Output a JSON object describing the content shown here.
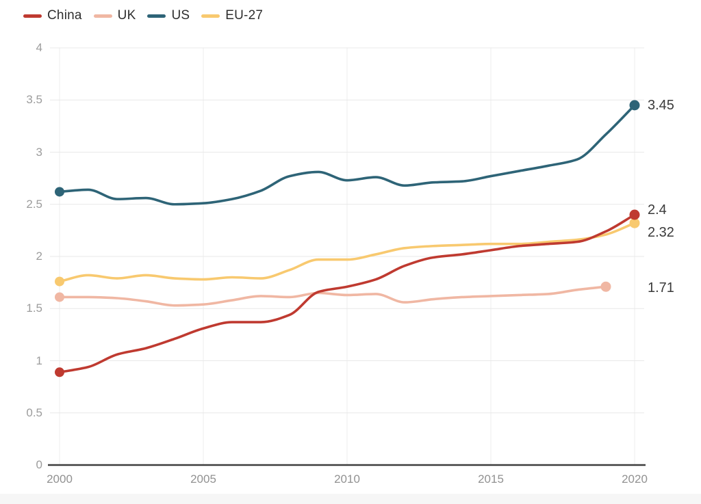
{
  "style": {
    "background": "#ffffff",
    "grid_color": "#e8e8e8",
    "vertical_grid_color": "#ededed",
    "axis_line_color": "#3d3d3d",
    "tick_text_color": "#9c9c9c",
    "end_label_color": "#3a3a3a",
    "legend_text_color": "#2e2e2e",
    "bottom_strip_color": "#f6f6f6"
  },
  "legend": {
    "items": [
      {
        "label": "China",
        "color": "#bf3a30"
      },
      {
        "label": "UK",
        "color": "#f0b7a3"
      },
      {
        "label": "US",
        "color": "#2e6477"
      },
      {
        "label": "EU-27",
        "color": "#f8c96f"
      }
    ]
  },
  "chart_data": {
    "type": "line",
    "title": "",
    "xlabel": "",
    "ylabel": "",
    "x": [
      2000,
      2001,
      2002,
      2003,
      2004,
      2005,
      2006,
      2007,
      2008,
      2009,
      2010,
      2011,
      2012,
      2013,
      2014,
      2015,
      2016,
      2017,
      2018,
      2019,
      2020
    ],
    "x_ticks": [
      2000,
      2005,
      2010,
      2015,
      2020
    ],
    "y_ticks": [
      0,
      0.5,
      1,
      1.5,
      2,
      2.5,
      3,
      3.5,
      4
    ],
    "ylim": [
      0,
      4
    ],
    "xlim": [
      2000,
      2020
    ],
    "grid": true,
    "legend_position": "top-left",
    "marker_ends": true,
    "z_order": [
      "US",
      "UK",
      "EU-27",
      "China"
    ],
    "series": [
      {
        "name": "China",
        "color": "#bf3a30",
        "end_label": "2.4",
        "end_label_dy": -7,
        "values": [
          0.89,
          0.94,
          1.06,
          1.12,
          1.21,
          1.31,
          1.37,
          1.37,
          1.44,
          1.66,
          1.71,
          1.78,
          1.91,
          1.99,
          2.02,
          2.06,
          2.1,
          2.12,
          2.14,
          2.24,
          2.4
        ]
      },
      {
        "name": "UK",
        "color": "#f0b7a3",
        "end_label": "1.71",
        "end_label_dy": 2,
        "values": [
          1.61,
          1.61,
          1.6,
          1.57,
          1.53,
          1.54,
          1.58,
          1.62,
          1.61,
          1.65,
          1.63,
          1.64,
          1.56,
          1.59,
          1.61,
          1.62,
          1.63,
          1.64,
          1.68,
          1.71,
          null
        ]
      },
      {
        "name": "US",
        "color": "#2e6477",
        "end_label": "3.45",
        "end_label_dy": 0,
        "values": [
          2.62,
          2.64,
          2.55,
          2.56,
          2.5,
          2.51,
          2.55,
          2.63,
          2.77,
          2.81,
          2.73,
          2.76,
          2.68,
          2.71,
          2.72,
          2.77,
          2.82,
          2.87,
          2.93,
          3.17,
          3.45
        ]
      },
      {
        "name": "EU-27",
        "color": "#f8c96f",
        "end_label": "2.32",
        "end_label_dy": 14,
        "values": [
          1.76,
          1.82,
          1.79,
          1.82,
          1.79,
          1.78,
          1.8,
          1.79,
          1.87,
          1.97,
          1.97,
          2.02,
          2.08,
          2.1,
          2.11,
          2.12,
          2.12,
          2.14,
          2.16,
          2.21,
          2.32
        ]
      }
    ]
  }
}
